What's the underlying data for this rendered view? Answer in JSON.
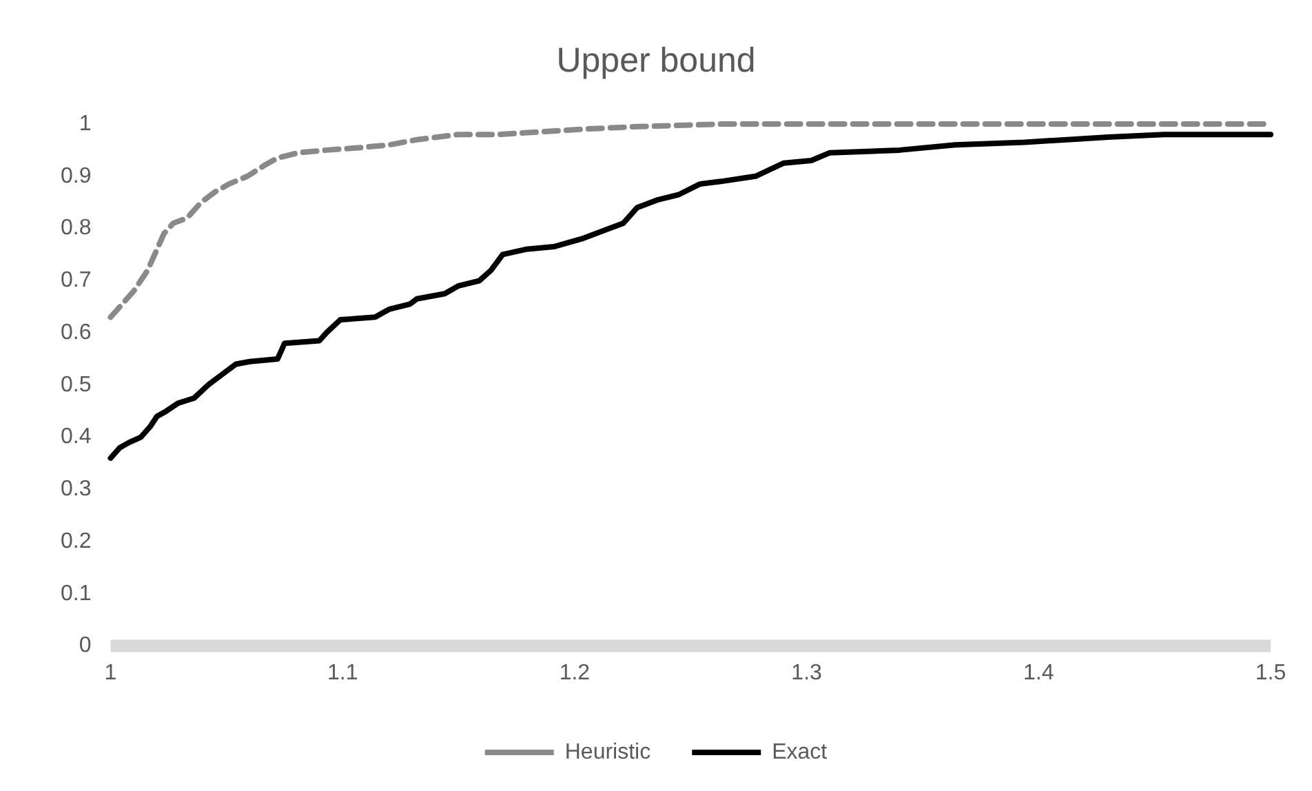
{
  "chart_data": {
    "type": "line",
    "title": "Upper bound",
    "xlim": [
      1,
      1.5
    ],
    "xticks": [
      1,
      1.1,
      1.2,
      1.3,
      1.4,
      1.5
    ],
    "ylim": [
      0,
      1
    ],
    "yticks": [
      0,
      0.1,
      0.2,
      0.3,
      0.4,
      0.5,
      0.6,
      0.7,
      0.8,
      0.9,
      1
    ],
    "grid": false,
    "legend": "bottom",
    "marker": "none",
    "series": [
      {
        "name": "Heuristic",
        "color": "#898989",
        "line_style": "dashed",
        "x": [
          1,
          1.004,
          1.01,
          1.013,
          1.016,
          1.02,
          1.023,
          1.027,
          1.033,
          1.039,
          1.045,
          1.051,
          1.059,
          1.066,
          1.072,
          1.081,
          1.093,
          1.108,
          1.12,
          1.132,
          1.15,
          1.167,
          1.185,
          1.203,
          1.227,
          1.263,
          1.5
        ],
        "values": [
          0.63,
          0.65,
          0.68,
          0.7,
          0.72,
          0.76,
          0.79,
          0.81,
          0.82,
          0.85,
          0.87,
          0.885,
          0.9,
          0.92,
          0.935,
          0.945,
          0.95,
          0.955,
          0.96,
          0.97,
          0.98,
          0.98,
          0.985,
          0.99,
          0.995,
          1,
          1
        ]
      },
      {
        "name": "Exact",
        "color": "#000000",
        "line_style": "solid",
        "x": [
          1,
          1.004,
          1.008,
          1.013,
          1.017,
          1.02,
          1.024,
          1.029,
          1.036,
          1.042,
          1.048,
          1.054,
          1.06,
          1.072,
          1.075,
          1.09,
          1.093,
          1.099,
          1.114,
          1.12,
          1.129,
          1.132,
          1.144,
          1.15,
          1.159,
          1.164,
          1.169,
          1.179,
          1.191,
          1.203,
          1.215,
          1.221,
          1.227,
          1.236,
          1.245,
          1.254,
          1.263,
          1.278,
          1.29,
          1.302,
          1.31,
          1.34,
          1.364,
          1.394,
          1.43,
          1.454,
          1.5
        ],
        "values": [
          0.36,
          0.38,
          0.39,
          0.4,
          0.42,
          0.44,
          0.45,
          0.465,
          0.475,
          0.5,
          0.52,
          0.54,
          0.545,
          0.55,
          0.58,
          0.585,
          0.6,
          0.625,
          0.63,
          0.645,
          0.655,
          0.665,
          0.675,
          0.69,
          0.7,
          0.72,
          0.75,
          0.76,
          0.765,
          0.78,
          0.8,
          0.81,
          0.84,
          0.855,
          0.865,
          0.885,
          0.89,
          0.9,
          0.925,
          0.93,
          0.945,
          0.95,
          0.96,
          0.965,
          0.975,
          0.98,
          0.98
        ]
      }
    ]
  }
}
